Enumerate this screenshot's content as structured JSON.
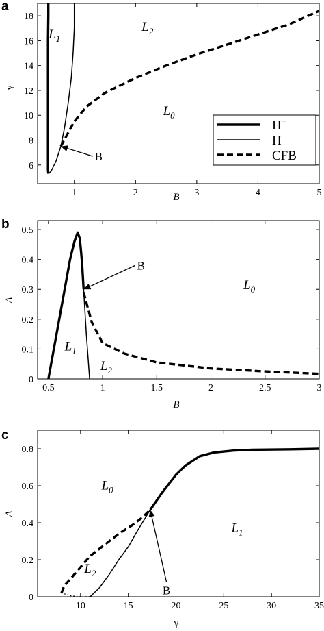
{
  "chart_data": [
    {
      "panel": "a",
      "type": "line",
      "xlabel": "B",
      "ylabel": "γ",
      "xlim": [
        0.4,
        5
      ],
      "ylim": [
        4.5,
        19
      ],
      "xticks": [
        1,
        2,
        3,
        4,
        5
      ],
      "yticks": [
        6,
        8,
        10,
        12,
        14,
        16,
        18
      ],
      "series": [
        {
          "name": "H⁺",
          "style": "thick",
          "points": [
            [
              0.575,
              5.3
            ],
            [
              0.57,
              5.6
            ],
            [
              0.57,
              6.5
            ],
            [
              0.57,
              8
            ],
            [
              0.57,
              10
            ],
            [
              0.57,
              12
            ],
            [
              0.57,
              14
            ],
            [
              0.57,
              16
            ],
            [
              0.575,
              18
            ],
            [
              0.575,
              19
            ]
          ]
        },
        {
          "name": "H⁻",
          "style": "thin",
          "points": [
            [
              0.58,
              5.3
            ],
            [
              0.62,
              5.5
            ],
            [
              0.7,
              6.3
            ],
            [
              0.78,
              7.5
            ],
            [
              0.84,
              9
            ],
            [
              0.9,
              11
            ],
            [
              0.95,
              13
            ],
            [
              0.98,
              15
            ],
            [
              1.0,
              17
            ],
            [
              1.0,
              19
            ]
          ]
        },
        {
          "name": "CFB",
          "style": "dashed",
          "points": [
            [
              0.78,
              7.5
            ],
            [
              0.9,
              8.6
            ],
            [
              1.0,
              9.5
            ],
            [
              1.2,
              10.7
            ],
            [
              1.5,
              11.8
            ],
            [
              2,
              13
            ],
            [
              2.5,
              14
            ],
            [
              3,
              14.9
            ],
            [
              3.5,
              15.7
            ],
            [
              4,
              16.5
            ],
            [
              4.5,
              17.3
            ],
            [
              5,
              18.4
            ]
          ]
        }
      ],
      "region_labels": [
        {
          "base": "L",
          "sub": "1",
          "x": 0.58,
          "y": 16.2
        },
        {
          "base": "L",
          "sub": "2",
          "x": 2.1,
          "y": 16.8
        },
        {
          "base": "L",
          "sub": "0",
          "x": 2.45,
          "y": 10
        }
      ],
      "point_label": {
        "text": "B",
        "x": 0.78,
        "y": 7.5,
        "text_x": 1.3,
        "text_y": 6.7
      },
      "legend": {
        "position": "bottom-right",
        "entries": [
          {
            "label": "H",
            "sup": "+",
            "style": "thick"
          },
          {
            "label": "H",
            "sup": "−",
            "style": "thin"
          },
          {
            "label": "CFB",
            "sup": "",
            "style": "dashed"
          }
        ]
      }
    },
    {
      "panel": "b",
      "type": "line",
      "xlabel": "B",
      "ylabel": "A",
      "xlim": [
        0.4,
        3
      ],
      "ylim": [
        0,
        0.53
      ],
      "xticks": [
        0.5,
        1,
        1.5,
        2,
        2.5,
        3
      ],
      "yticks": [
        0,
        0.1,
        0.2,
        0.3,
        0.4,
        0.5
      ],
      "series": [
        {
          "name": "H⁺",
          "style": "thick",
          "points": [
            [
              0.5,
              0
            ],
            [
              0.6,
              0.2
            ],
            [
              0.7,
              0.4
            ],
            [
              0.74,
              0.46
            ],
            [
              0.77,
              0.49
            ],
            [
              0.79,
              0.47
            ],
            [
              0.81,
              0.39
            ],
            [
              0.825,
              0.3
            ]
          ]
        },
        {
          "name": "H⁻",
          "style": "thin",
          "points": [
            [
              0.825,
              0.3
            ],
            [
              0.85,
              0.15
            ],
            [
              0.88,
              0
            ]
          ]
        },
        {
          "name": "CFB",
          "style": "dashed",
          "points": [
            [
              0.825,
              0.29
            ],
            [
              0.9,
              0.19
            ],
            [
              1,
              0.12
            ],
            [
              1.2,
              0.085
            ],
            [
              1.5,
              0.055
            ],
            [
              2,
              0.035
            ],
            [
              2.5,
              0.025
            ],
            [
              3,
              0.017
            ]
          ]
        }
      ],
      "region_labels": [
        {
          "base": "L",
          "sub": "1",
          "x": 0.65,
          "y": 0.095
        },
        {
          "base": "L",
          "sub": "2",
          "x": 0.98,
          "y": 0.03
        },
        {
          "base": "L",
          "sub": "0",
          "x": 2.3,
          "y": 0.3
        }
      ],
      "point_label": {
        "text": "B",
        "x": 0.825,
        "y": 0.3,
        "text_x": 1.3,
        "text_y": 0.38
      }
    },
    {
      "panel": "c",
      "type": "line",
      "xlabel": "γ",
      "ylabel": "A",
      "xlim": [
        5.5,
        35
      ],
      "ylim": [
        0,
        0.9
      ],
      "xticks": [
        10,
        15,
        20,
        25,
        30,
        35
      ],
      "yticks": [
        0,
        0.2,
        0.4,
        0.6,
        0.8
      ],
      "series": [
        {
          "name": "H⁺",
          "style": "thick",
          "points": [
            [
              17.3,
              0.47
            ],
            [
              18.5,
              0.56
            ],
            [
              20,
              0.66
            ],
            [
              21,
              0.71
            ],
            [
              22.5,
              0.76
            ],
            [
              24,
              0.78
            ],
            [
              26,
              0.79
            ],
            [
              28,
              0.795
            ],
            [
              32,
              0.797
            ],
            [
              35,
              0.8
            ]
          ]
        },
        {
          "name": "H⁻",
          "style": "thin",
          "points": [
            [
              11,
              0
            ],
            [
              12,
              0.05
            ],
            [
              13,
              0.12
            ],
            [
              14,
              0.2
            ],
            [
              15,
              0.27
            ],
            [
              16,
              0.36
            ],
            [
              17.3,
              0.47
            ]
          ]
        },
        {
          "name": "CFB",
          "style": "dashed",
          "points": [
            [
              8,
              0.02
            ],
            [
              8.3,
              0.06
            ],
            [
              9,
              0.1
            ],
            [
              10,
              0.16
            ],
            [
              11,
              0.22
            ],
            [
              12.5,
              0.28
            ],
            [
              14,
              0.34
            ],
            [
              15.5,
              0.39
            ],
            [
              16.5,
              0.43
            ],
            [
              17.3,
              0.47
            ]
          ]
        },
        {
          "name": "",
          "style": "dotted",
          "points": [
            [
              8,
              0.02
            ],
            [
              9,
              0.005
            ],
            [
              10,
              0
            ],
            [
              11,
              0
            ]
          ]
        }
      ],
      "region_labels": [
        {
          "base": "L",
          "sub": "0",
          "x": 12.2,
          "y": 0.58
        },
        {
          "base": "L",
          "sub": "1",
          "x": 25.8,
          "y": 0.35
        },
        {
          "base": "L",
          "sub": "2",
          "x": 10.4,
          "y": 0.13
        }
      ],
      "point_label": {
        "text": "B",
        "x": 17.3,
        "y": 0.47,
        "text_x": 19,
        "text_y": 0.08
      }
    }
  ]
}
